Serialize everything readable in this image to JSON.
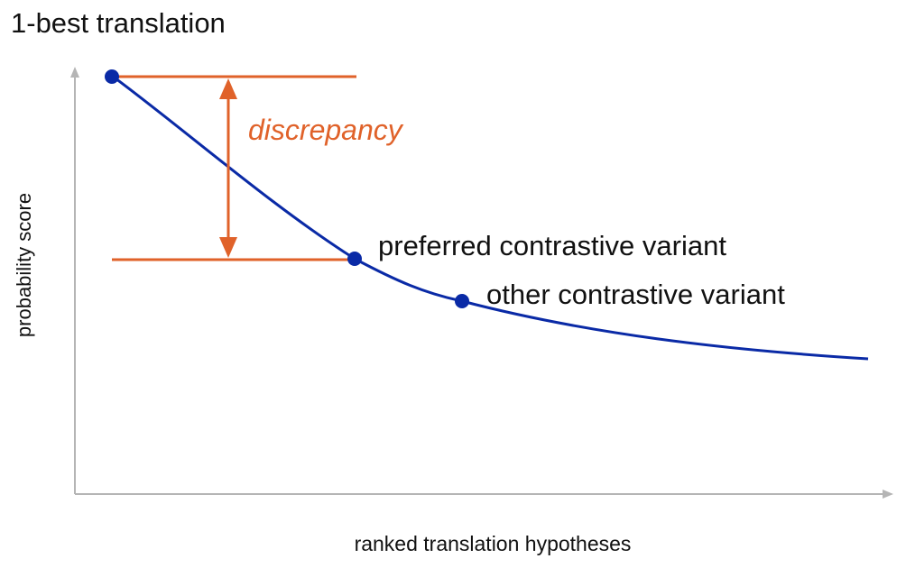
{
  "title": "1-best translation",
  "annotations": {
    "discrepancy": "discrepancy",
    "preferred": "preferred contrastive variant",
    "other": "other contrastive variant"
  },
  "axes": {
    "y_label": "probability score",
    "x_label": "ranked translation hypotheses"
  }
}
